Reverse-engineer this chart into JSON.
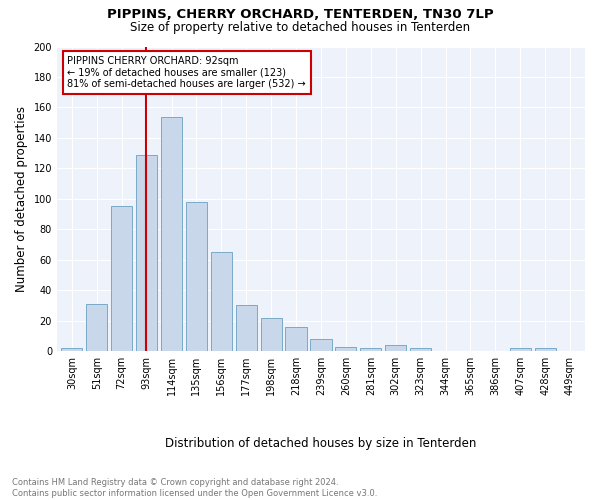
{
  "title1": "PIPPINS, CHERRY ORCHARD, TENTERDEN, TN30 7LP",
  "title2": "Size of property relative to detached houses in Tenterden",
  "xlabel": "Distribution of detached houses by size in Tenterden",
  "ylabel": "Number of detached properties",
  "footnote": "Contains HM Land Registry data © Crown copyright and database right 2024.\nContains public sector information licensed under the Open Government Licence v3.0.",
  "bin_labels": [
    "30sqm",
    "51sqm",
    "72sqm",
    "93sqm",
    "114sqm",
    "135sqm",
    "156sqm",
    "177sqm",
    "198sqm",
    "218sqm",
    "239sqm",
    "260sqm",
    "281sqm",
    "302sqm",
    "323sqm",
    "344sqm",
    "365sqm",
    "386sqm",
    "407sqm",
    "428sqm",
    "449sqm"
  ],
  "bar_values": [
    2,
    31,
    95,
    129,
    154,
    98,
    65,
    30,
    22,
    16,
    8,
    3,
    2,
    4,
    2,
    0,
    0,
    0,
    2,
    2,
    0
  ],
  "bar_color": "#c8d8ea",
  "bar_edge_color": "#7aaac8",
  "vline_color": "#cc0000",
  "annotation_text": "PIPPINS CHERRY ORCHARD: 92sqm\n← 19% of detached houses are smaller (123)\n81% of semi-detached houses are larger (532) →",
  "annotation_box_color": "white",
  "annotation_box_edgecolor": "#cc0000",
  "ylim": [
    0,
    200
  ],
  "background_color": "#eef2fb",
  "grid_color": "white",
  "title_fontsize": 9.5,
  "subtitle_fontsize": 8.5,
  "ylabel_fontsize": 8.5,
  "xlabel_fontsize": 8.5,
  "tick_fontsize": 7,
  "annotation_fontsize": 7,
  "footnote_fontsize": 6,
  "footnote_color": "#777777"
}
